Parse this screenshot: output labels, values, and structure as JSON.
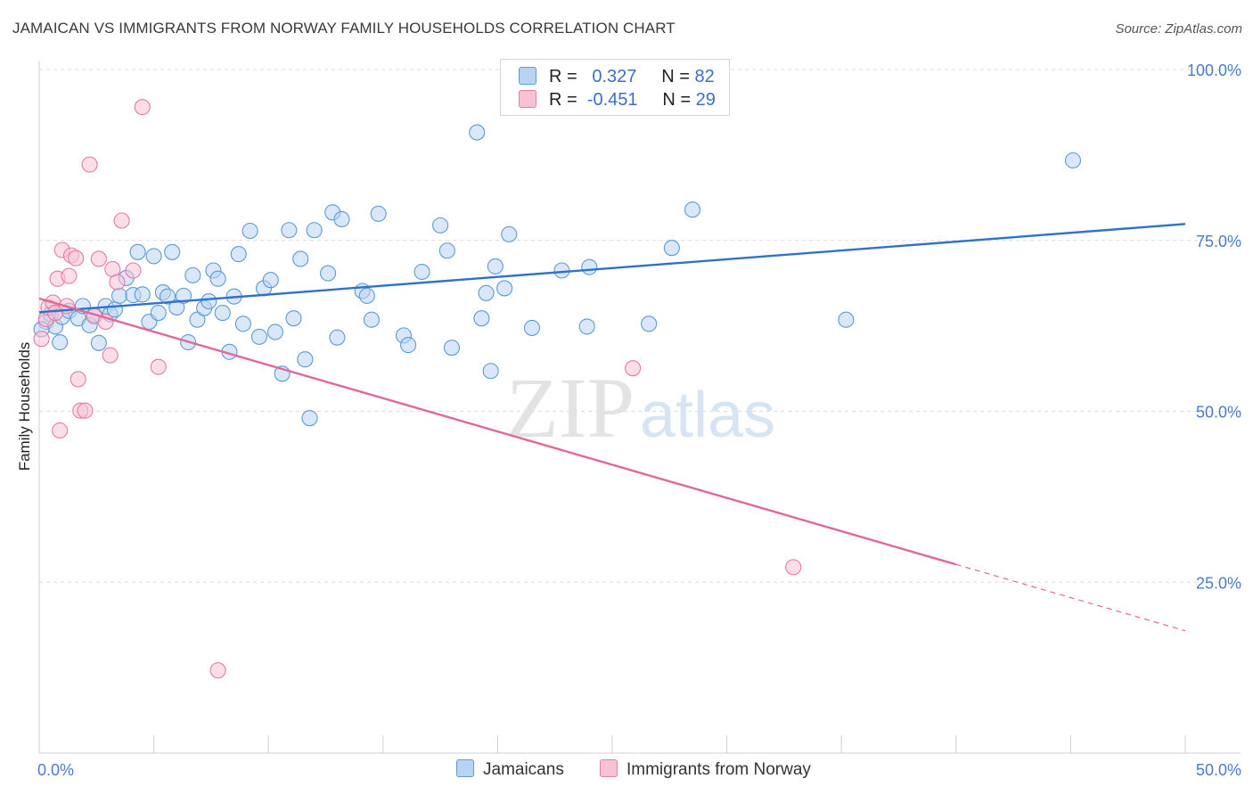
{
  "header": {
    "title": "JAMAICAN VS IMMIGRANTS FROM NORWAY FAMILY HOUSEHOLDS CORRELATION CHART",
    "source": "Source: ZipAtlas.com"
  },
  "legend_stats": [
    {
      "r_label": "R =",
      "r_value": "0.327",
      "n_label": "N =",
      "n_value": "82"
    },
    {
      "r_label": "R =",
      "r_value": "-0.451",
      "n_label": "N =",
      "n_value": "29"
    }
  ],
  "colors": {
    "blue": "#5b9bd5",
    "blue_fill": "#b9d3f2",
    "blue_line": "#2f72cc",
    "pink": "#e97aa0",
    "pink_fill": "#f7c3d4",
    "pink_line": "#e0689a",
    "axis_text": "#4a7cc9",
    "grid": "#dcdcdc"
  },
  "chart_data": {
    "type": "scatter",
    "ylabel": "Family Households",
    "xlim": [
      0,
      50
    ],
    "ylim": [
      0,
      100
    ],
    "x_tick_labels": [
      {
        "value": 0,
        "label": "0.0%"
      },
      {
        "value": 50,
        "label": "50.0%"
      }
    ],
    "y_tick_labels": [
      {
        "value": 25,
        "label": "25.0%"
      },
      {
        "value": 50,
        "label": "50.0%"
      },
      {
        "value": 75,
        "label": "75.0%"
      },
      {
        "value": 100,
        "label": "100.0%"
      }
    ],
    "grid": true,
    "legend_position": "bottom-center",
    "watermark": {
      "zip": "ZIP",
      "atlas": "atlas"
    },
    "series": [
      {
        "name": "Jamaicans",
        "color": "#5b9bd5",
        "trend": {
          "x": [
            0,
            50
          ],
          "y": [
            64.5,
            77.4
          ],
          "dashed_after": null
        },
        "points": [
          [
            0.3,
            63.1
          ],
          [
            0.5,
            64.2
          ],
          [
            0.7,
            62.4
          ],
          [
            0.9,
            60.1
          ],
          [
            1.0,
            63.8
          ],
          [
            1.3,
            64.7
          ],
          [
            1.7,
            63.6
          ],
          [
            1.9,
            65.4
          ],
          [
            2.2,
            62.6
          ],
          [
            2.4,
            64.1
          ],
          [
            2.6,
            60.0
          ],
          [
            2.9,
            65.4
          ],
          [
            3.1,
            64.2
          ],
          [
            3.3,
            64.9
          ],
          [
            3.5,
            66.9
          ],
          [
            3.8,
            69.5
          ],
          [
            4.1,
            67.0
          ],
          [
            4.3,
            73.3
          ],
          [
            4.5,
            67.1
          ],
          [
            4.8,
            63.1
          ],
          [
            5.0,
            72.7
          ],
          [
            5.2,
            64.4
          ],
          [
            5.4,
            67.4
          ],
          [
            5.6,
            66.8
          ],
          [
            5.8,
            73.3
          ],
          [
            6.0,
            65.2
          ],
          [
            6.3,
            66.9
          ],
          [
            6.5,
            60.1
          ],
          [
            6.7,
            69.9
          ],
          [
            6.9,
            63.4
          ],
          [
            7.2,
            65.1
          ],
          [
            7.4,
            66.1
          ],
          [
            7.6,
            70.6
          ],
          [
            7.8,
            69.4
          ],
          [
            8.0,
            64.4
          ],
          [
            8.3,
            58.7
          ],
          [
            8.5,
            66.8
          ],
          [
            8.7,
            73.0
          ],
          [
            8.9,
            62.8
          ],
          [
            9.2,
            76.4
          ],
          [
            9.6,
            60.9
          ],
          [
            9.8,
            68.0
          ],
          [
            10.1,
            69.2
          ],
          [
            10.3,
            61.6
          ],
          [
            10.6,
            55.5
          ],
          [
            10.9,
            76.5
          ],
          [
            11.1,
            63.6
          ],
          [
            11.4,
            72.3
          ],
          [
            11.6,
            57.6
          ],
          [
            11.8,
            49.0
          ],
          [
            12.0,
            76.5
          ],
          [
            12.6,
            70.2
          ],
          [
            12.8,
            79.1
          ],
          [
            13.0,
            60.8
          ],
          [
            13.2,
            78.1
          ],
          [
            14.1,
            67.6
          ],
          [
            14.3,
            66.9
          ],
          [
            14.5,
            63.4
          ],
          [
            14.8,
            78.9
          ],
          [
            15.9,
            61.1
          ],
          [
            16.1,
            59.7
          ],
          [
            16.7,
            70.4
          ],
          [
            17.5,
            77.2
          ],
          [
            17.8,
            73.5
          ],
          [
            18.0,
            59.3
          ],
          [
            19.1,
            90.8
          ],
          [
            19.3,
            63.6
          ],
          [
            19.5,
            67.3
          ],
          [
            19.7,
            55.9
          ],
          [
            19.9,
            71.2
          ],
          [
            20.3,
            68.0
          ],
          [
            20.5,
            75.9
          ],
          [
            21.5,
            62.2
          ],
          [
            22.8,
            70.6
          ],
          [
            23.9,
            62.4
          ],
          [
            24.0,
            71.1
          ],
          [
            26.6,
            62.8
          ],
          [
            27.6,
            73.9
          ],
          [
            28.5,
            79.5
          ],
          [
            35.2,
            63.4
          ],
          [
            45.1,
            86.7
          ],
          [
            0.1,
            62.0
          ]
        ]
      },
      {
        "name": "Immigrants from Norway",
        "color": "#e97aa0",
        "trend": {
          "x": [
            0,
            40
          ],
          "y": [
            66.5,
            27.6
          ],
          "dashed_after": {
            "x": [
              40,
              50
            ],
            "y": [
              27.6,
              17.9
            ]
          }
        },
        "points": [
          [
            0.1,
            60.6
          ],
          [
            0.3,
            63.5
          ],
          [
            0.4,
            65.2
          ],
          [
            0.6,
            65.9
          ],
          [
            0.7,
            64.4
          ],
          [
            0.8,
            69.4
          ],
          [
            0.9,
            47.2
          ],
          [
            1.0,
            73.6
          ],
          [
            1.2,
            65.4
          ],
          [
            1.3,
            69.8
          ],
          [
            1.4,
            72.8
          ],
          [
            1.6,
            72.4
          ],
          [
            1.7,
            54.7
          ],
          [
            1.8,
            50.1
          ],
          [
            2.0,
            50.1
          ],
          [
            2.2,
            86.1
          ],
          [
            2.4,
            63.9
          ],
          [
            2.6,
            72.3
          ],
          [
            2.9,
            63.1
          ],
          [
            3.1,
            58.2
          ],
          [
            3.2,
            70.8
          ],
          [
            3.4,
            68.9
          ],
          [
            3.6,
            77.9
          ],
          [
            4.1,
            70.6
          ],
          [
            4.5,
            94.5
          ],
          [
            5.2,
            56.5
          ],
          [
            7.8,
            12.1
          ],
          [
            25.9,
            56.3
          ],
          [
            32.9,
            27.2
          ]
        ]
      }
    ]
  }
}
